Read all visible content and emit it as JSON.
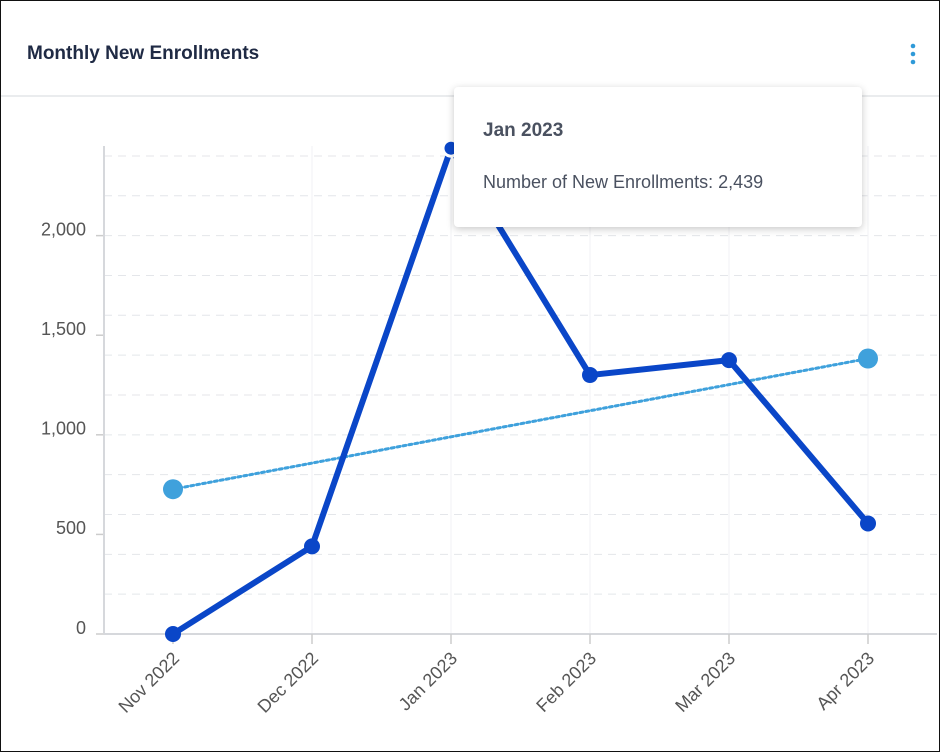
{
  "chart_data": {
    "type": "line",
    "title": "Monthly New Enrollments",
    "categories": [
      "Nov 2022",
      "Dec 2022",
      "Jan 2023",
      "Feb 2023",
      "Mar 2023",
      "Apr 2023"
    ],
    "series": [
      {
        "color": "#0a46c8",
        "values": [
          0,
          440,
          2439,
          1300,
          1375,
          555
        ]
      },
      {
        "color": "#3fa1dc",
        "dashed": true,
        "values": [
          727,
          858,
          990,
          1121,
          1252,
          1383
        ]
      }
    ],
    "ylim": [
      0,
      2450
    ],
    "yticks": [
      0,
      500,
      {
        "value": 1000,
        "label": "1,000"
      },
      {
        "value": 1500,
        "label": "1,500"
      },
      {
        "value": 2000,
        "label": "2,000"
      }
    ],
    "grid_lines": [
      200,
      400,
      600,
      800,
      1000,
      1200,
      1400,
      1600,
      1800,
      2000,
      2200,
      2400
    ],
    "grid": true,
    "tooltip": {
      "title": "Jan 2023",
      "text": "Number of New Enrollments: 2,439",
      "index": 2
    }
  }
}
